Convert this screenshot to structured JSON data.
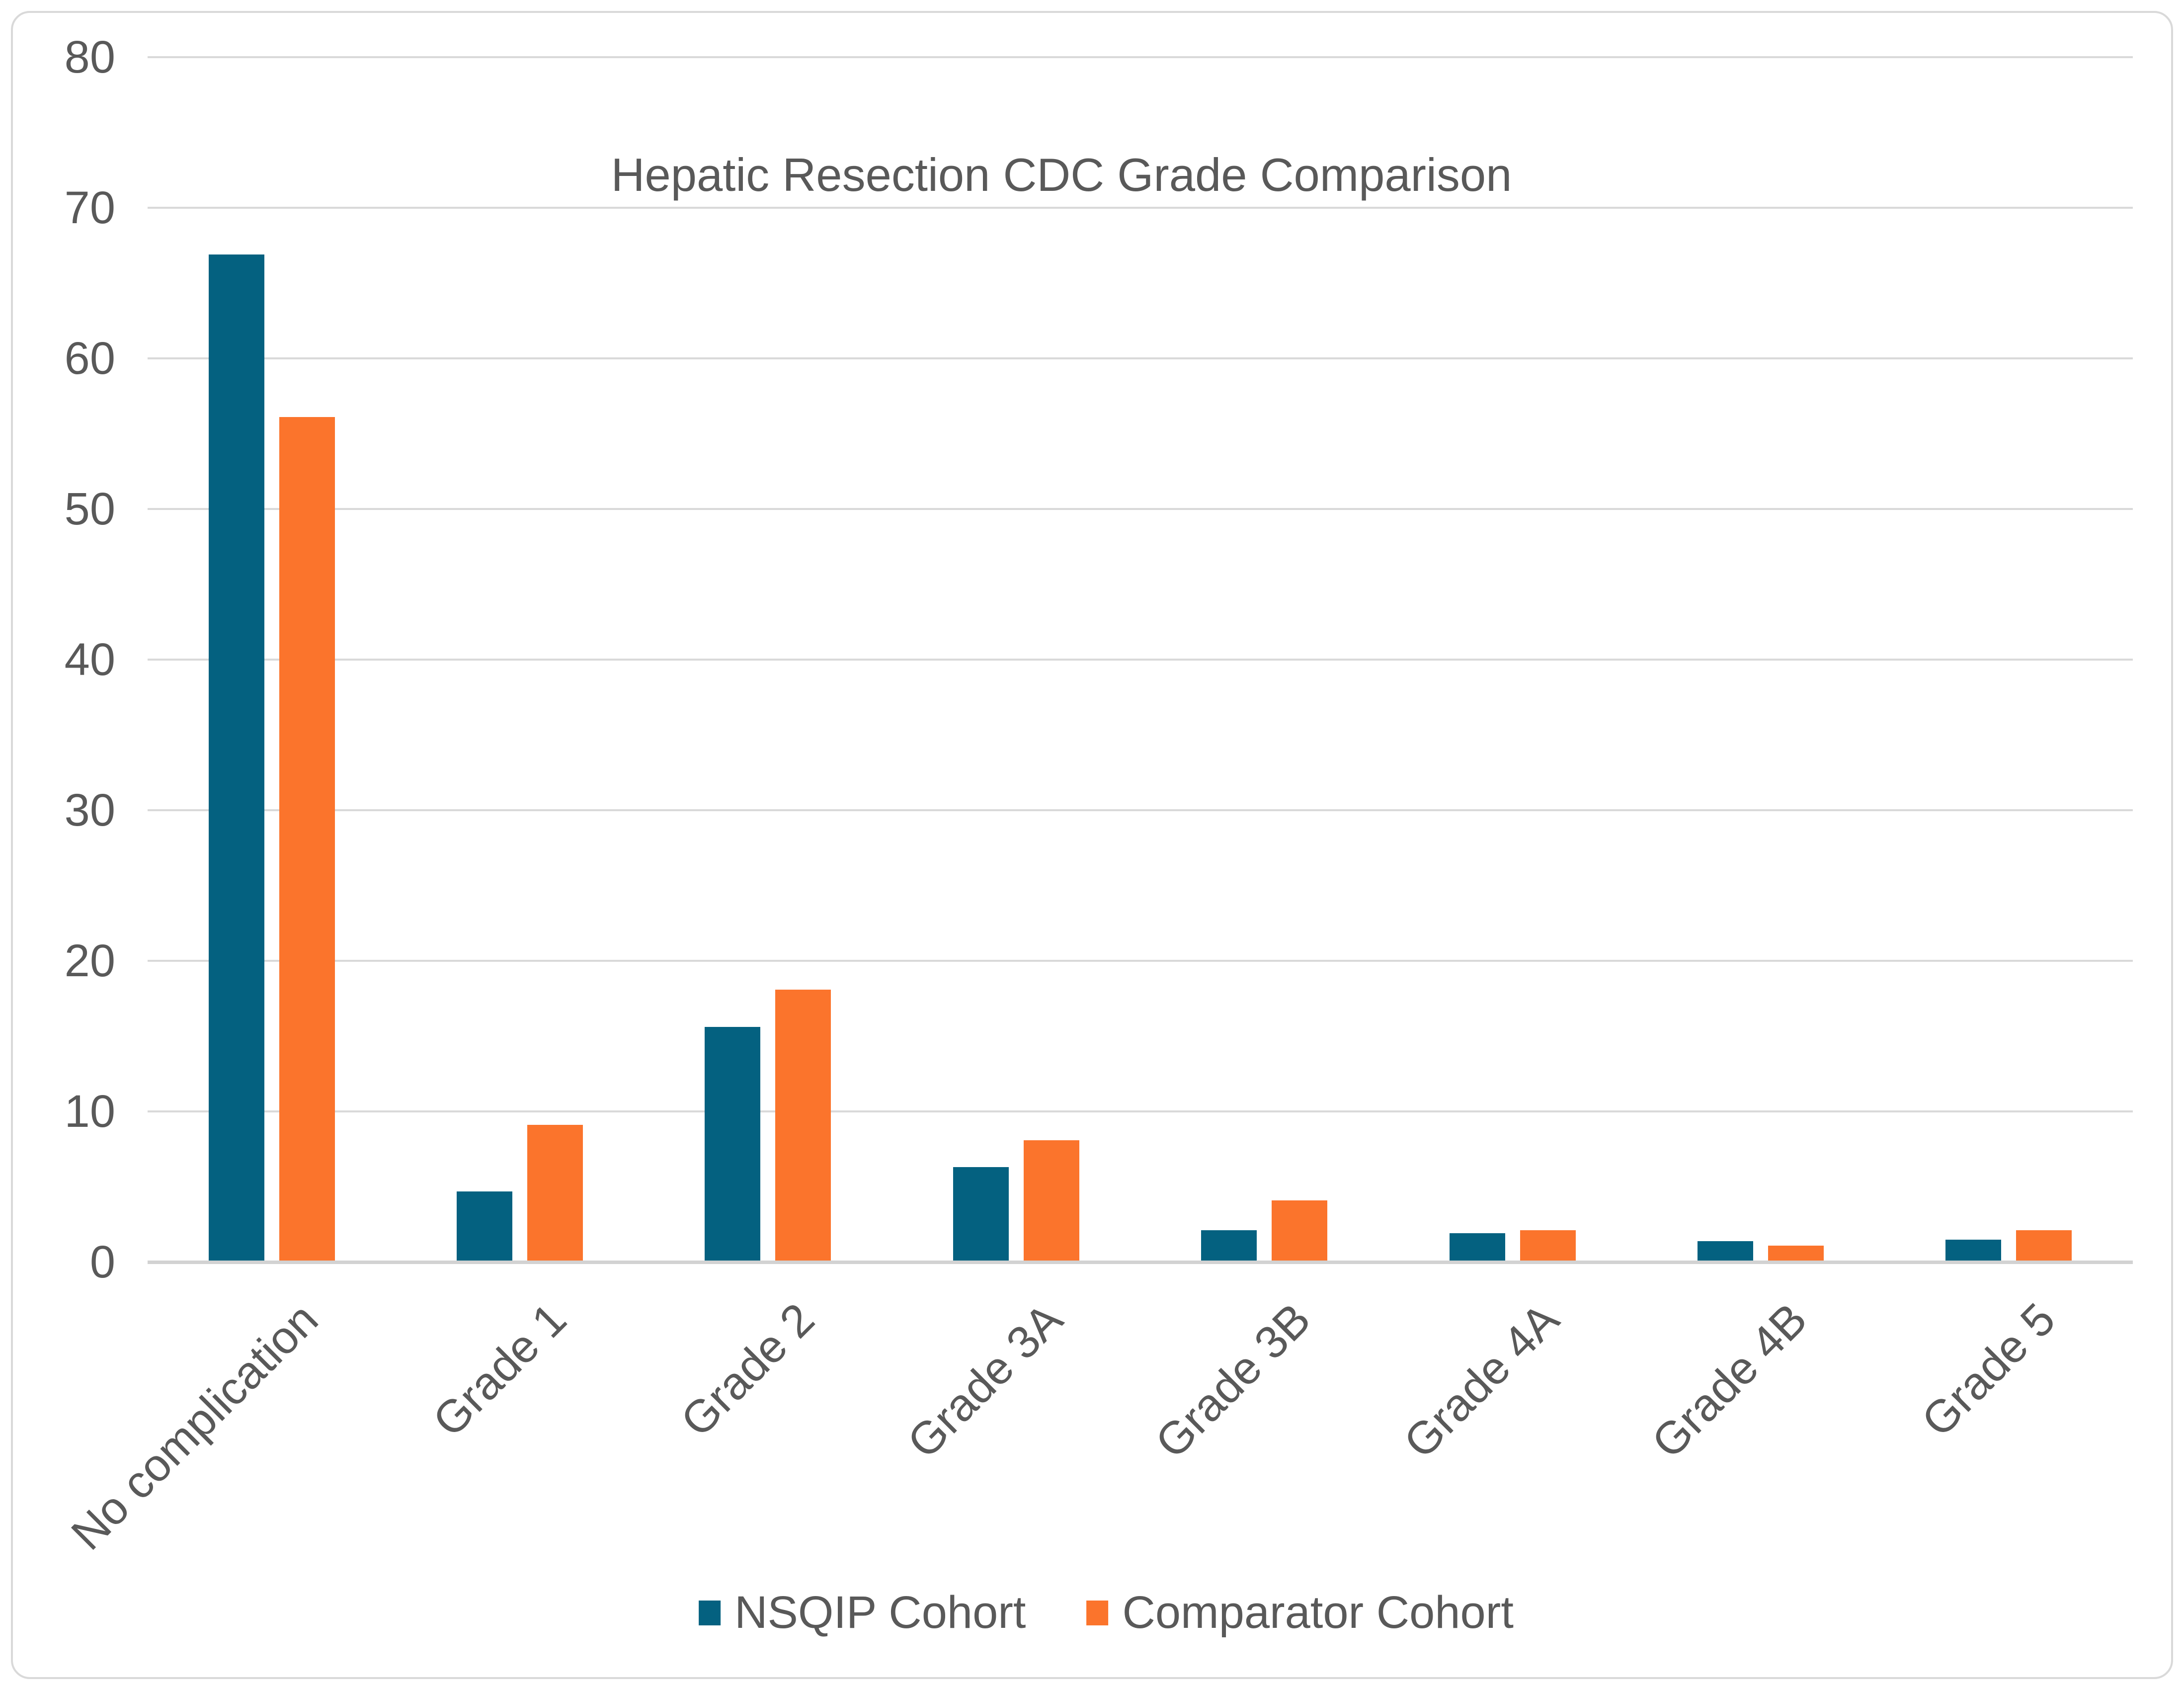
{
  "chart_data": {
    "type": "bar",
    "title": "Hepatic Resection CDC Grade Comparison",
    "categories": [
      "No complication",
      "Grade 1",
      "Grade 2",
      "Grade 3A",
      "Grade 3B",
      "Grade 4A",
      "Grade 4B",
      "Grade 5"
    ],
    "series": [
      {
        "name": "NSQIP Cohort",
        "color": "#046180",
        "values": [
          66.8,
          4.6,
          15.5,
          6.2,
          2.0,
          1.8,
          1.3,
          1.4
        ]
      },
      {
        "name": "Comparator Cohort",
        "color": "#FB742C",
        "values": [
          56.0,
          9.0,
          18.0,
          8.0,
          4.0,
          2.0,
          1.0,
          2.0
        ]
      }
    ],
    "ylabel": "",
    "xlabel": "",
    "ylim": [
      0,
      80
    ],
    "y_ticks": [
      0,
      10,
      20,
      30,
      40,
      50,
      60,
      70,
      80
    ],
    "grid": true,
    "legend_position": "bottom",
    "colors": {
      "text": "#595959",
      "gridline": "#D9D9D9",
      "axis_line": "#D2D2D2",
      "border": "#D9D9D9",
      "background": "#FFFFFF"
    }
  }
}
